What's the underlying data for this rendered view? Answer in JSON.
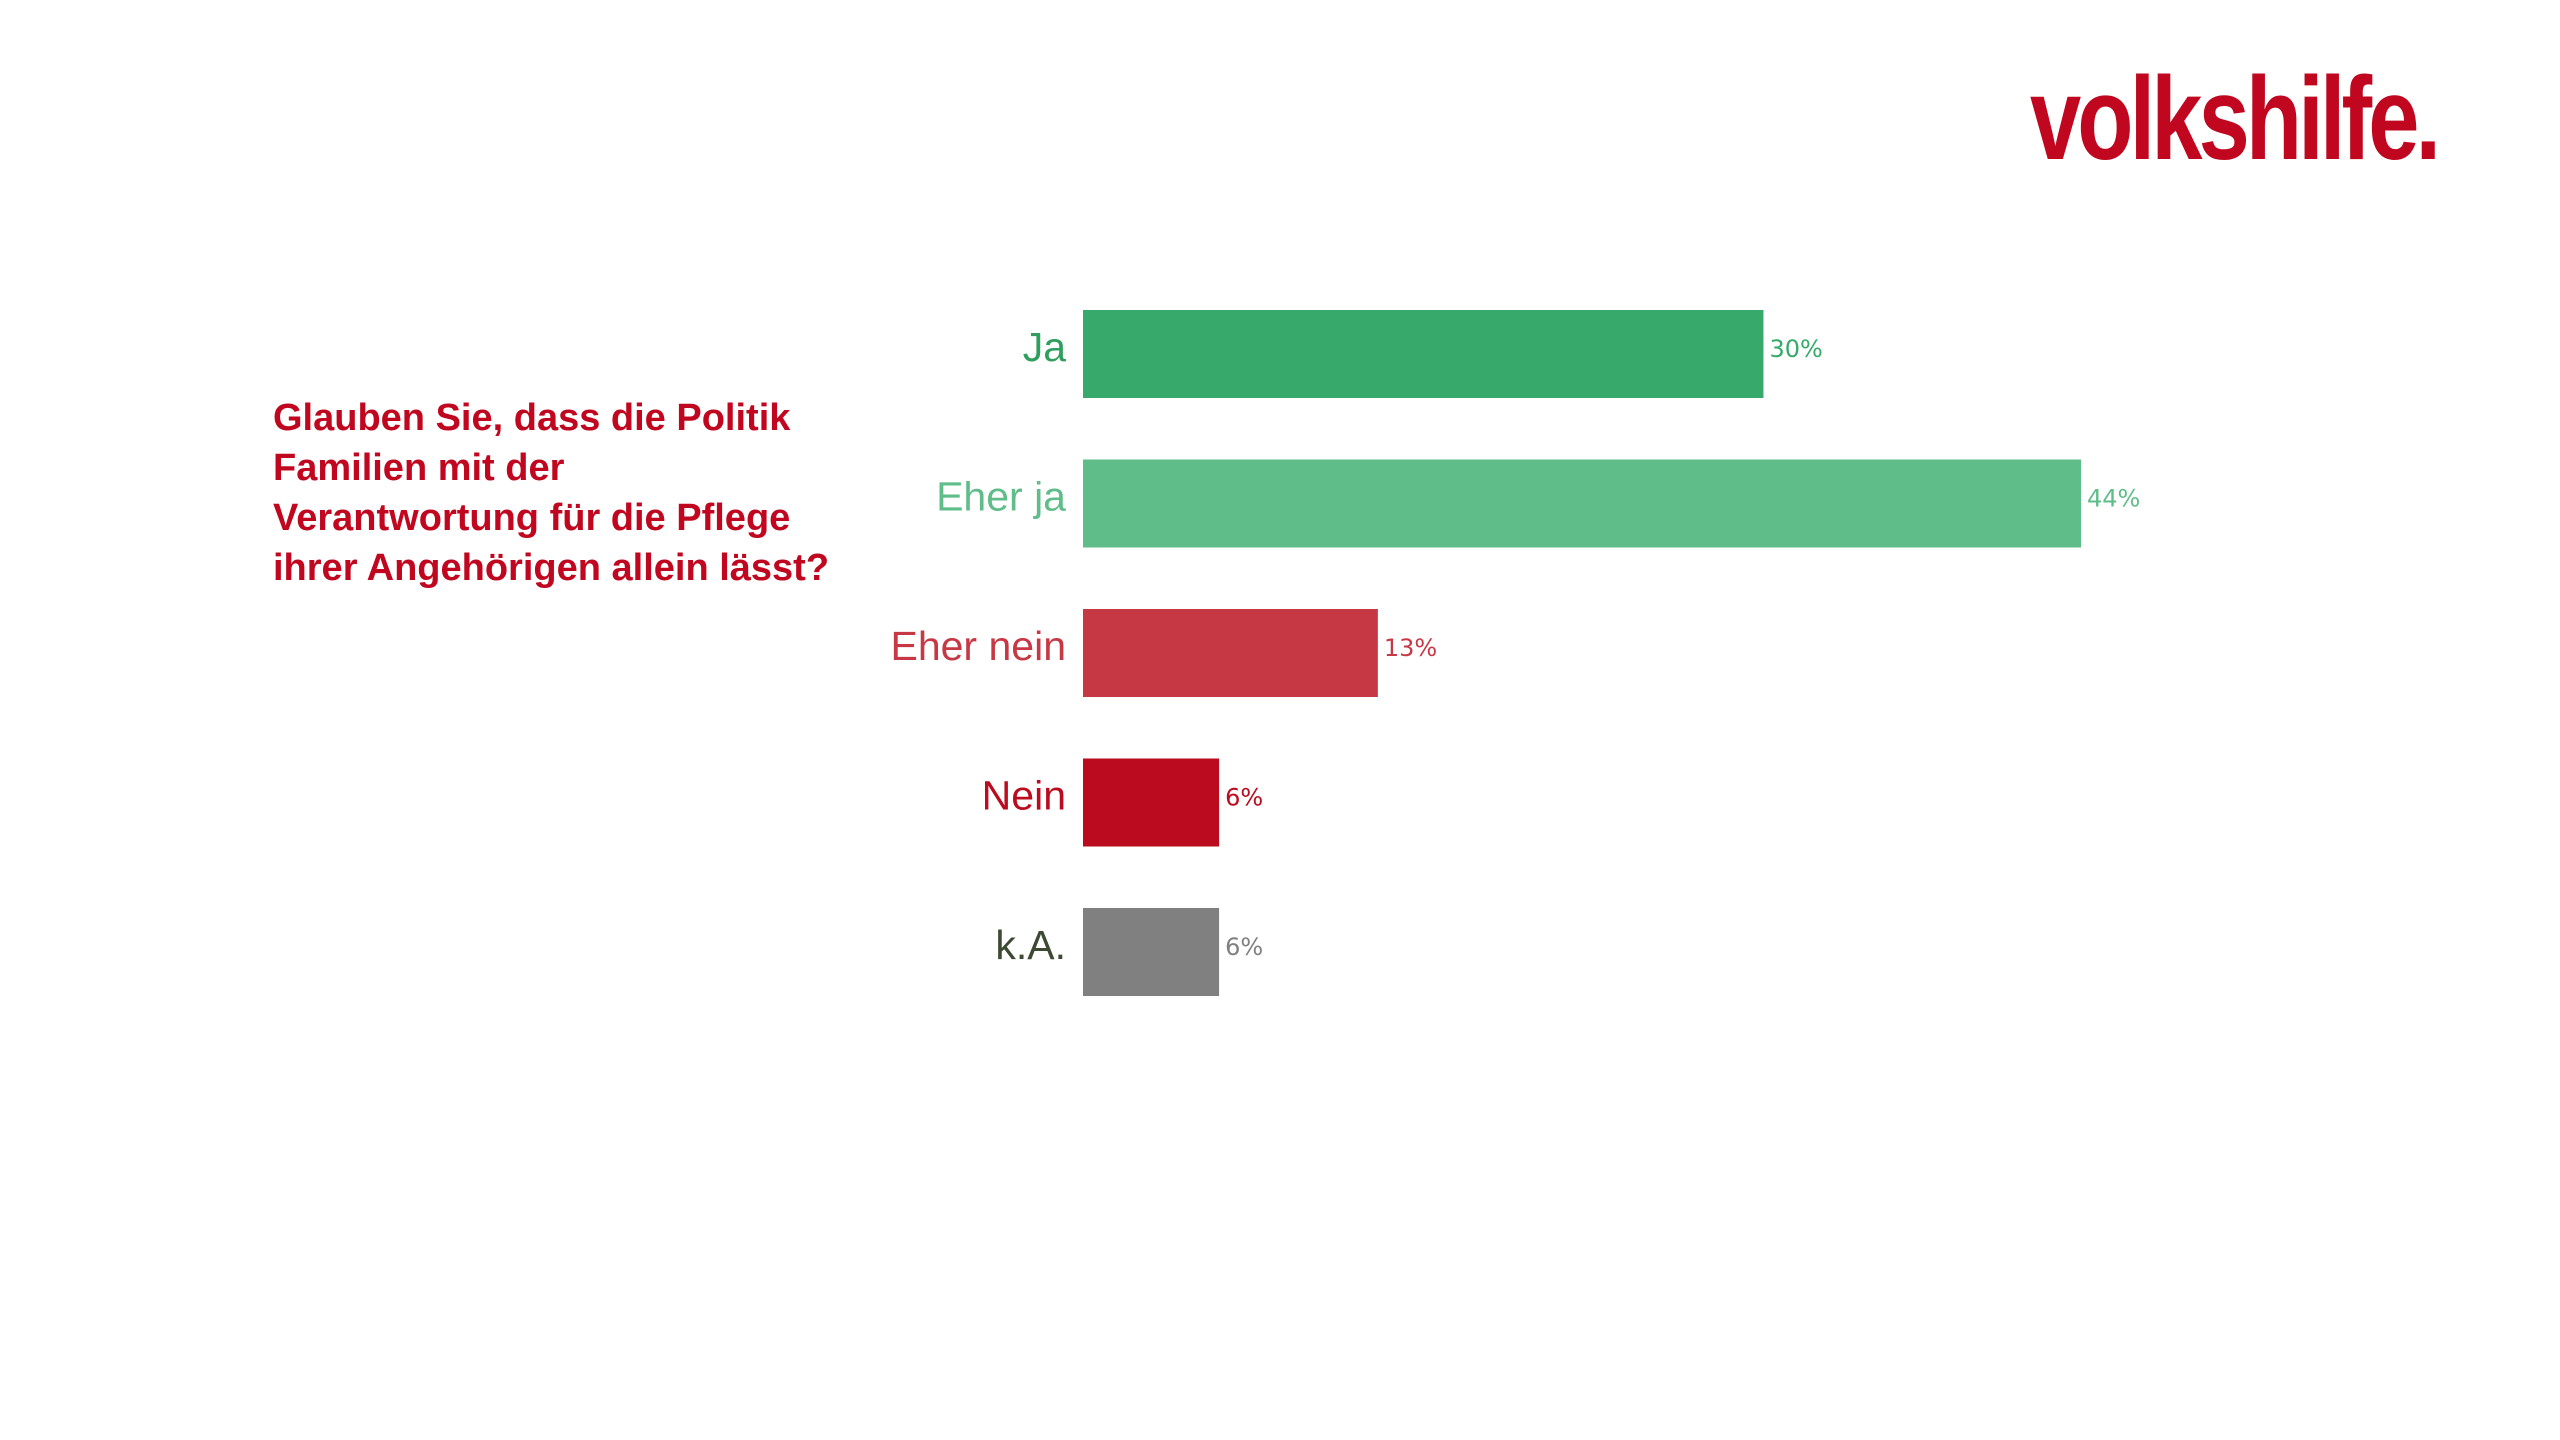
{
  "brand": {
    "logo_text": "volkshilfe.",
    "color": "#c0071f"
  },
  "question": {
    "text": "Glauben Sie, dass die Politik Familien mit der Verantwortung für die Pflege ihrer Angehörigen allein lässt?"
  },
  "chart_data": {
    "type": "bar",
    "orientation": "horizontal",
    "title": "",
    "xlabel": "",
    "ylabel": "",
    "xlim": [
      0,
      44
    ],
    "grid": false,
    "categories": [
      "Ja",
      "Eher ja",
      "Eher nein",
      "Nein",
      "k.A."
    ],
    "values": [
      30,
      44,
      13,
      6,
      6
    ],
    "value_labels": [
      "30%",
      "44%",
      "13%",
      "6%",
      "6%"
    ],
    "bar_colors": [
      "#36a96b",
      "#5fbd89",
      "#c73845",
      "#bb0b1e",
      "#808080"
    ],
    "category_label_colors": [
      "#2f9e5e",
      "#5fbd89",
      "#c73845",
      "#bb0b1e",
      "#3d4a33"
    ],
    "value_label_colors": [
      "#36a96b",
      "#5fbd89",
      "#c73845",
      "#bb0b1e",
      "#808080"
    ]
  }
}
